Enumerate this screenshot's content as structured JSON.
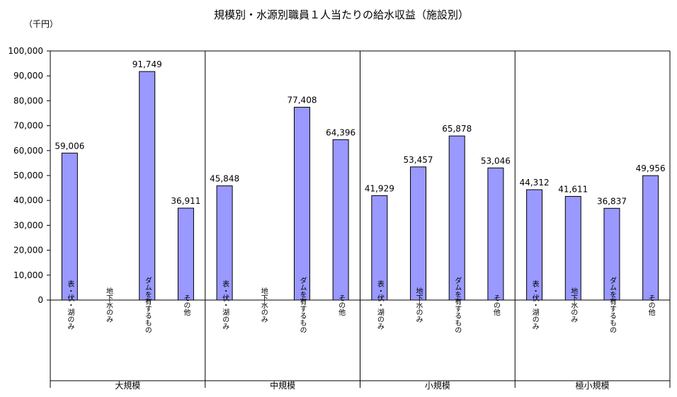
{
  "chart_data": {
    "type": "bar",
    "title": "規模別・水源別職員１人当たりの給水収益（施設別）",
    "ylabel": "（千円）",
    "ylim": [
      0,
      100000
    ],
    "ytick_step": 10000,
    "y_tick_labels": [
      "0",
      "10,000",
      "20,000",
      "30,000",
      "40,000",
      "50,000",
      "60,000",
      "70,000",
      "80,000",
      "90,000",
      "100,000"
    ],
    "grid": false,
    "bar_color": "#9999ff",
    "groups": [
      {
        "name": "大規模",
        "categories": [
          "表・伏・湖のみ",
          "地下水のみ",
          "ダムを有するもの",
          "その他"
        ],
        "values": [
          59006,
          null,
          91749,
          36911
        ],
        "labels": [
          "59,006",
          "",
          "91,749",
          "36,911"
        ]
      },
      {
        "name": "中規模",
        "categories": [
          "表・伏・湖のみ",
          "地下水のみ",
          "ダムを有するもの",
          "その他"
        ],
        "values": [
          45848,
          null,
          77408,
          64396
        ],
        "labels": [
          "45,848",
          "",
          "77,408",
          "64,396"
        ]
      },
      {
        "name": "小規模",
        "categories": [
          "表・伏・湖のみ",
          "地下水のみ",
          "ダムを有するもの",
          "その他"
        ],
        "values": [
          41929,
          53457,
          65878,
          53046
        ],
        "labels": [
          "41,929",
          "53,457",
          "65,878",
          "53,046"
        ]
      },
      {
        "name": "極小規模",
        "categories": [
          "表・伏・湖のみ",
          "地下水のみ",
          "ダムを有するもの",
          "その他"
        ],
        "values": [
          44312,
          41611,
          36837,
          49956
        ],
        "labels": [
          "44,312",
          "41,611",
          "36,837",
          "49,956"
        ]
      }
    ]
  }
}
